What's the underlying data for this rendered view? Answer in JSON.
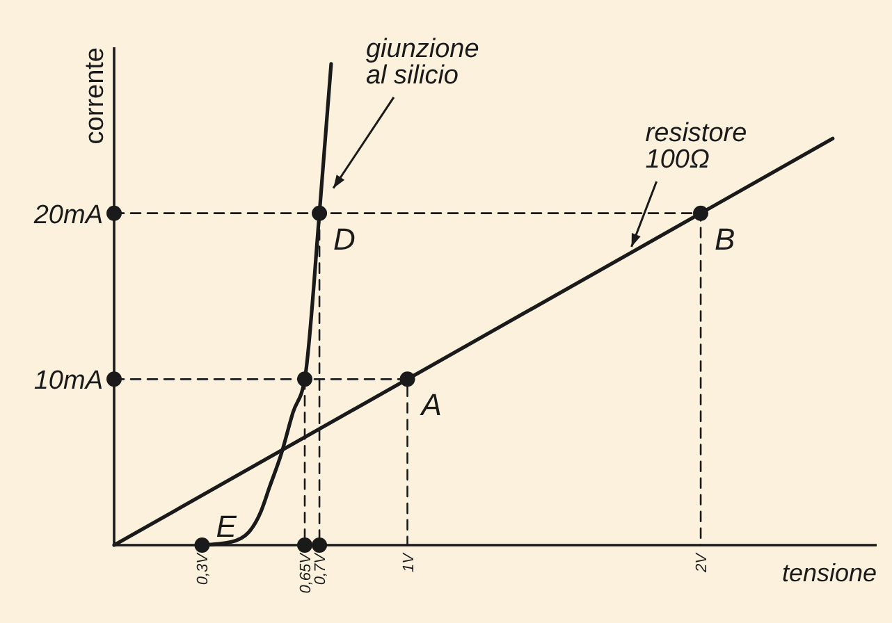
{
  "chart_data": {
    "type": "line",
    "xlabel": "tensione",
    "ylabel": "corrente",
    "xlim": [
      0,
      2.6
    ],
    "ylim": [
      0,
      30
    ],
    "xticks": [
      {
        "value": 0.3,
        "label": "0,3V"
      },
      {
        "value": 0.65,
        "label": "0,65V"
      },
      {
        "value": 0.7,
        "label": "0,7V"
      },
      {
        "value": 1,
        "label": "1V"
      },
      {
        "value": 2,
        "label": "2V"
      }
    ],
    "yticks": [
      {
        "value": 10,
        "label": "10mA"
      },
      {
        "value": 20,
        "label": "20mA"
      }
    ],
    "grid": false,
    "series": [
      {
        "name": "giunzione al silicio",
        "color": "#1a1a1a",
        "x": [
          0.3,
          0.4,
          0.46,
          0.5,
          0.53,
          0.57,
          0.61,
          0.65,
          0.7,
          0.74
        ],
        "values": [
          0,
          0.2,
          0.8,
          2,
          3.5,
          5.5,
          8,
          10,
          20,
          29
        ]
      },
      {
        "name": "resistore 100Ω",
        "color": "#1a1a1a",
        "x": [
          0,
          2.45
        ],
        "values": [
          0,
          24.5
        ]
      },
      {
        "type": "line",
        "line_style": "dashed",
        "color": "#1a1a1a",
        "x": [
          0,
          1,
          1
        ],
        "values": [
          10,
          10,
          0
        ]
      },
      {
        "type": "line",
        "line_style": "dashed",
        "color": "#1a1a1a",
        "x": [
          0,
          2,
          2
        ],
        "values": [
          20,
          20,
          0
        ]
      },
      {
        "type": "line",
        "line_style": "dashed",
        "color": "#1a1a1a",
        "x": [
          0.65,
          0.65
        ],
        "values": [
          10,
          0
        ]
      },
      {
        "type": "line",
        "line_style": "dashed",
        "color": "#1a1a1a",
        "x": [
          0.7,
          0.7
        ],
        "values": [
          20,
          0
        ]
      },
      {
        "type": "scatter",
        "marker": "circle",
        "color": "#1a1a1a",
        "x": [
          0.3,
          0.65,
          0.7,
          0,
          0,
          0.65,
          0.7,
          1,
          2
        ],
        "values": [
          0,
          0,
          0,
          10,
          20,
          10,
          20,
          10,
          20
        ]
      }
    ],
    "annotations": [
      {
        "text": "A",
        "x": 1,
        "y": 10
      },
      {
        "text": "B",
        "x": 2,
        "y": 20
      },
      {
        "text": "D",
        "x": 0.7,
        "y": 20
      },
      {
        "text": "E",
        "x": 0.3,
        "y": 0
      }
    ]
  }
}
